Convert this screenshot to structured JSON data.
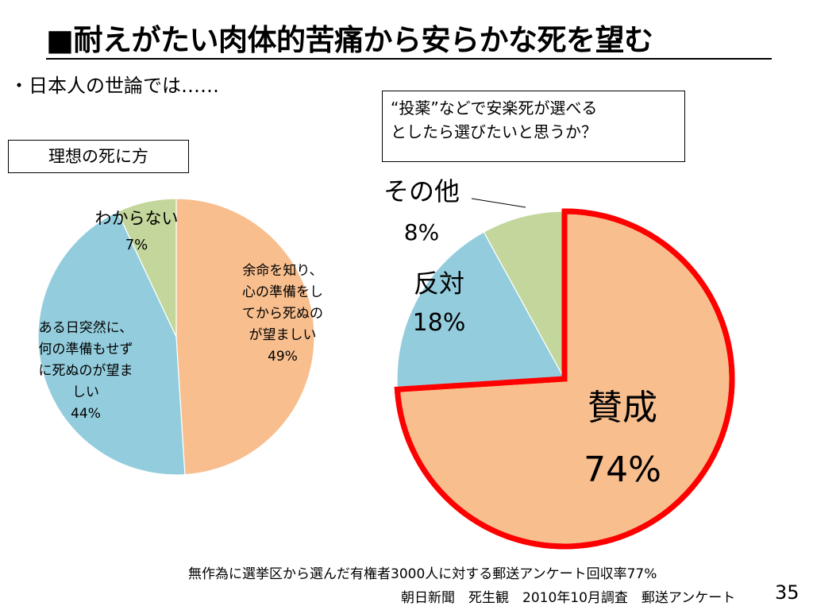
{
  "slide": {
    "title": "■耐えがたい肉体的苦痛から安らかな死を望む",
    "subtitle": "・日本人の世論では……",
    "page_number": "35"
  },
  "left_chart_box": "理想の死に方",
  "right_chart_box": {
    "line1": "“投薬”などで安楽死が選べる",
    "line2": "としたら選びたいと思うか？"
  },
  "footer": {
    "line1": "無作為に選挙区から選んだ有権者3000人に対する郵送アンケート回収率77%",
    "line2": "朝日新聞　死生観　2010年10月調査　郵送アンケート"
  },
  "chart_data": [
    {
      "type": "pie",
      "title": "理想の死に方",
      "slices": [
        {
          "label": [
            "余命を知り、",
            "心の準備をし",
            "てから死ぬの",
            "が望ましい"
          ],
          "value": 49,
          "value_label": "49%",
          "color": "#F8BE8E"
        },
        {
          "label": [
            "ある日突然に、",
            "何の準備もせず",
            "に死ぬのが望ま",
            "しい"
          ],
          "value": 44,
          "value_label": "44%",
          "color": "#93CDDD"
        },
        {
          "label": [
            "わからない"
          ],
          "value": 7,
          "value_label": "7%",
          "color": "#C3D69B"
        }
      ]
    },
    {
      "type": "pie",
      "title": "“投薬”などで安楽死が選べるとしたら選びたいと思うか？",
      "slices": [
        {
          "label": [
            "賛成"
          ],
          "value": 74,
          "value_label": "74%",
          "color": "#F8BE8E",
          "highlight": "#FF0000"
        },
        {
          "label": [
            "反対"
          ],
          "value": 18,
          "value_label": "18%",
          "color": "#93CDDD"
        },
        {
          "label": [
            "その他"
          ],
          "value": 8,
          "value_label": "8%",
          "color": "#C3D69B"
        }
      ]
    }
  ]
}
